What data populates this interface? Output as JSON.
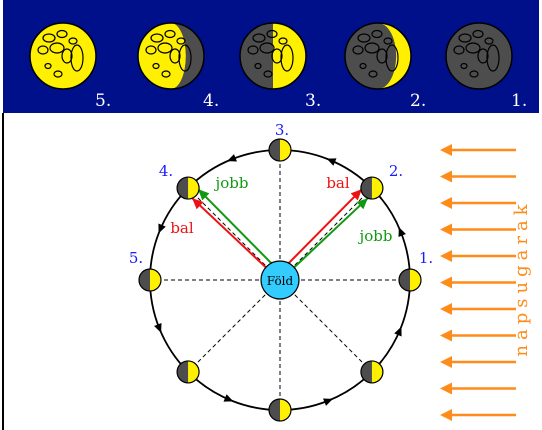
{
  "banner": {
    "background": "#000f8a",
    "phases": [
      {
        "label": "5.",
        "lit": "full"
      },
      {
        "label": "4.",
        "lit": "gibbous"
      },
      {
        "label": "3.",
        "lit": "half"
      },
      {
        "label": "2.",
        "lit": "crescent"
      },
      {
        "label": "1.",
        "lit": "new"
      }
    ]
  },
  "diagram": {
    "earth_label": "Föld",
    "position_labels": {
      "p3": "3.",
      "p4": "4.",
      "p2": "2.",
      "p5": "5.",
      "p1": "1."
    },
    "side_labels": {
      "left_green": "jobb",
      "left_red": "bal",
      "right_red": "bal",
      "right_green": "jobb"
    },
    "sunlight_label": "napsugarak"
  },
  "colors": {
    "moon_lit": "#ffef00",
    "moon_dark": "#4d4d4d",
    "earth": "#33ccff",
    "green": "#119911",
    "red": "#ee1111",
    "sunray": "#ff8c1a",
    "label_blue": "#1a1aff",
    "banner": "#000f8a"
  }
}
